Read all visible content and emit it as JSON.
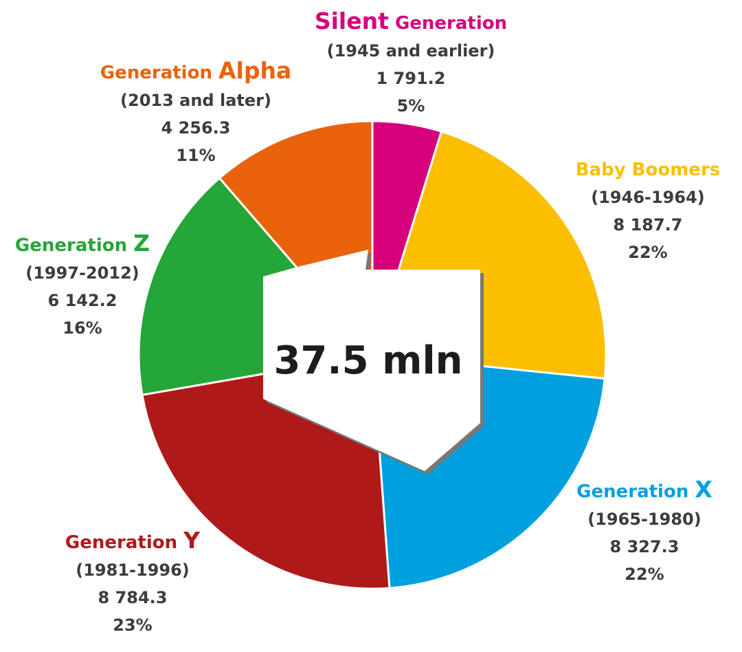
{
  "chart_data": {
    "type": "pie",
    "total_label": "37.5 mln",
    "slices": [
      {
        "name_parts": [
          {
            "text": "Silent",
            "big": true
          },
          {
            "text": " Generation",
            "big": false
          }
        ],
        "period": "(1945 and earlier)",
        "value": 1791.2,
        "value_label": "1 791.2",
        "percent_label": "5%",
        "color": "#D6007D"
      },
      {
        "name_parts": [
          {
            "text": "Baby Boomers",
            "big": false
          }
        ],
        "period": "(1946-1964)",
        "value": 8187.7,
        "value_label": "8 187.7",
        "percent_label": "22%",
        "color": "#FBBF00"
      },
      {
        "name_parts": [
          {
            "text": "Generation ",
            "big": false
          },
          {
            "text": "X",
            "big": true
          }
        ],
        "period": "(1965-1980)",
        "value": 8327.3,
        "value_label": "8 327.3",
        "percent_label": "22%",
        "color": "#00A0DF"
      },
      {
        "name_parts": [
          {
            "text": "Generation ",
            "big": false
          },
          {
            "text": "Y",
            "big": true
          }
        ],
        "period": "(1981-1996)",
        "value": 8784.3,
        "value_label": "8 784.3",
        "percent_label": "23%",
        "color": "#B0191A"
      },
      {
        "name_parts": [
          {
            "text": "Generation ",
            "big": false
          },
          {
            "text": "Z",
            "big": true
          }
        ],
        "period": "(1997-2012)",
        "value": 6142.2,
        "value_label": "6 142.2",
        "percent_label": "16%",
        "color": "#25A638"
      },
      {
        "name_parts": [
          {
            "text": "Generation ",
            "big": false
          },
          {
            "text": "Alpha",
            "big": true
          }
        ],
        "period": "(2013 and later)",
        "value": 4256.3,
        "value_label": "4 256.3",
        "percent_label": "11%",
        "color": "#EA620C"
      }
    ]
  }
}
